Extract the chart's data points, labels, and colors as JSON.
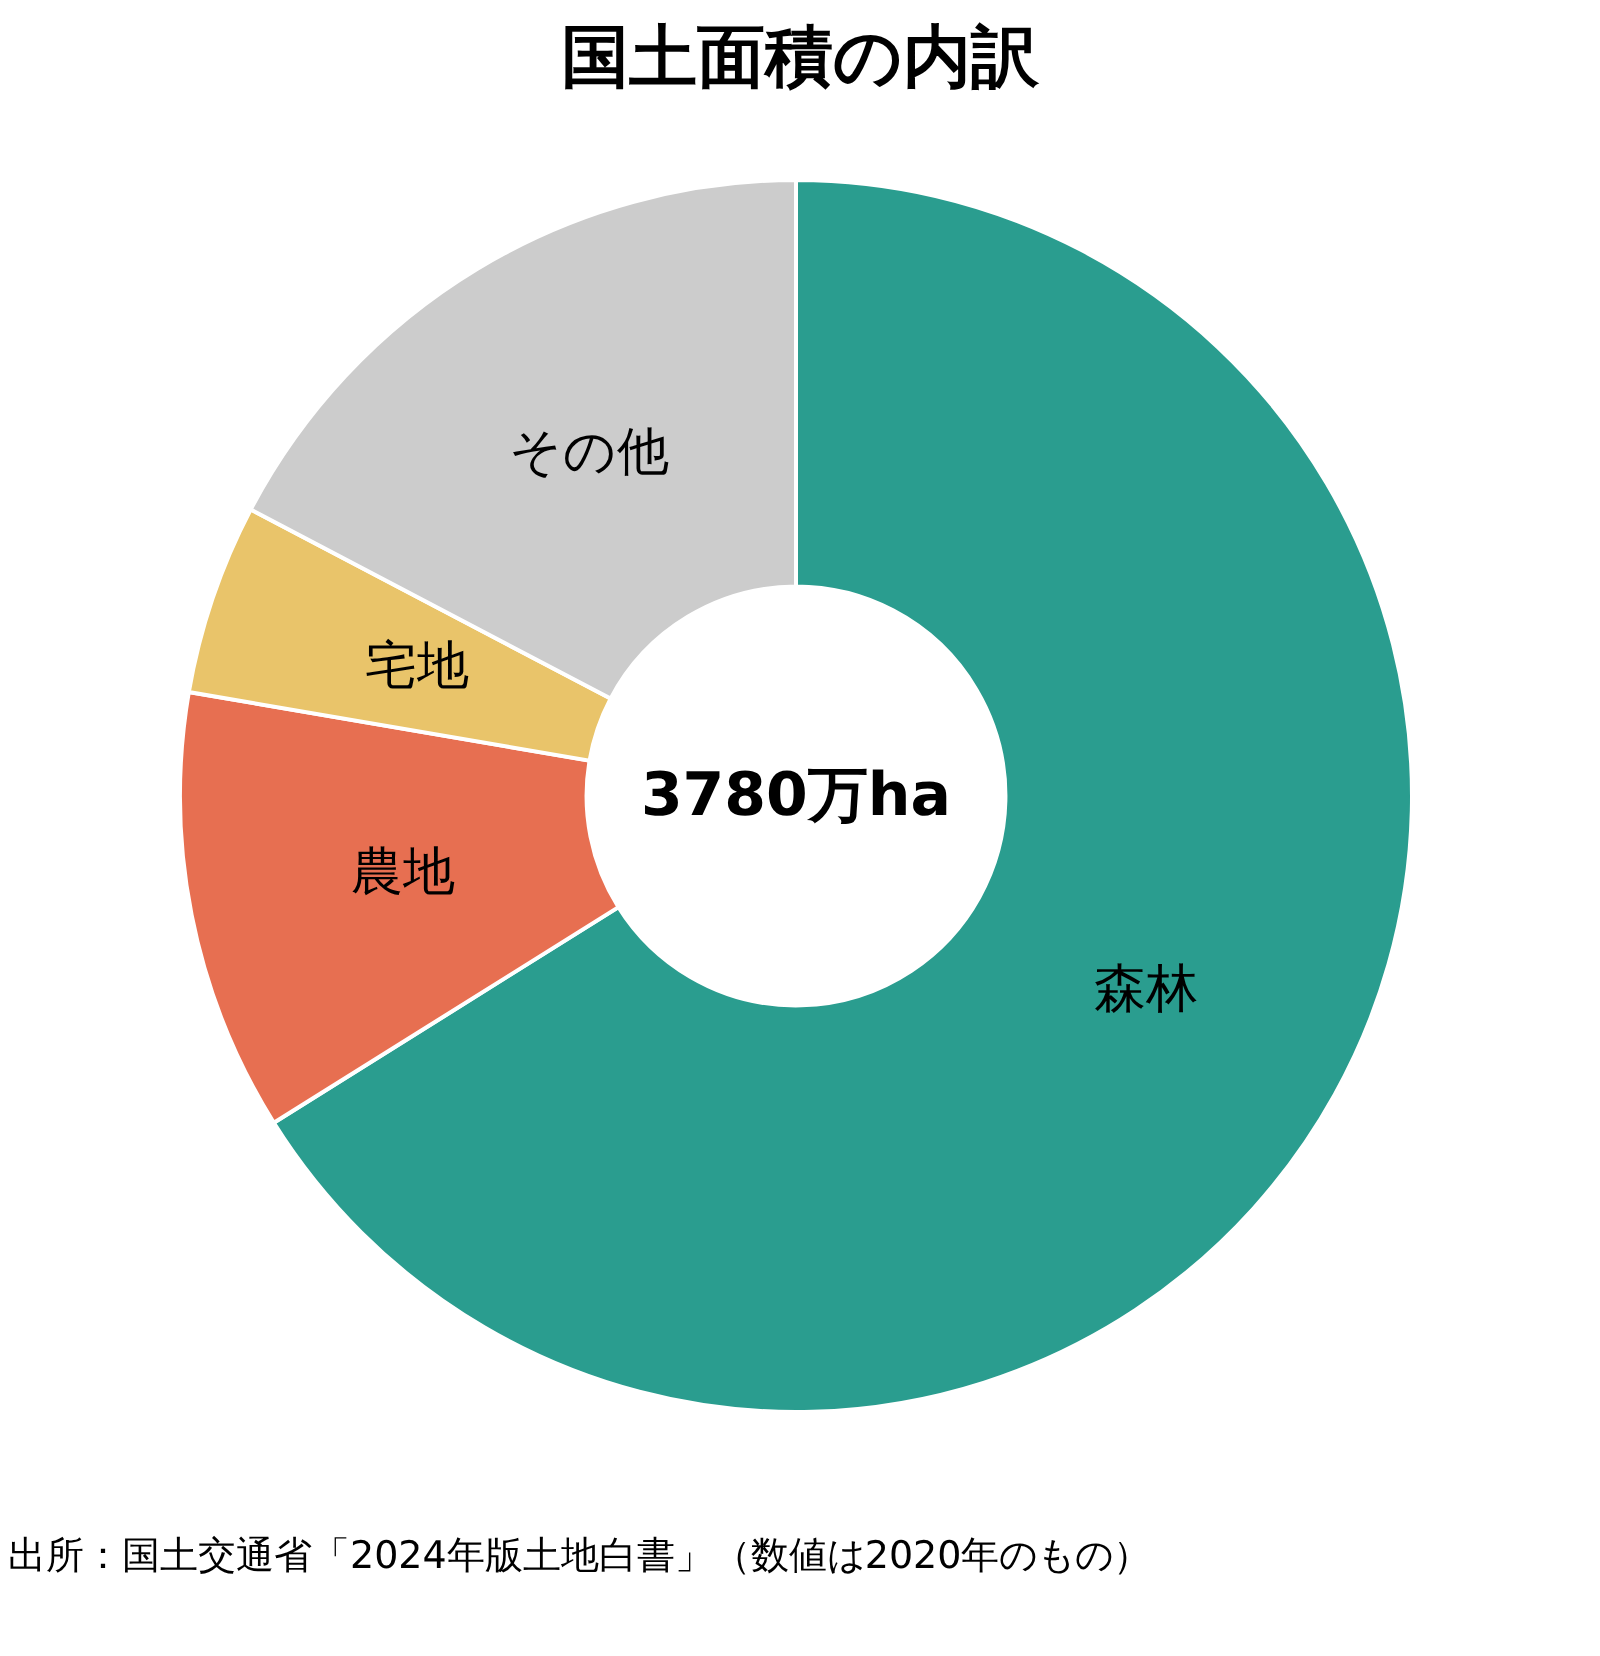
{
  "chart_data": {
    "type": "donut",
    "title": "国土面積の内訳",
    "categories": [
      "森林",
      "農地",
      "宅地",
      "その他"
    ],
    "values": [
      66.1,
      11.6,
      5.0,
      17.3
    ],
    "colors": [
      "#2a9d8f",
      "#e76f51",
      "#e9c46a",
      "#cccccc"
    ],
    "annotations": [
      "3780万ha",
      "出所：国土交通省「2024年版土地白書」（数値は2020年のもの）"
    ]
  }
}
